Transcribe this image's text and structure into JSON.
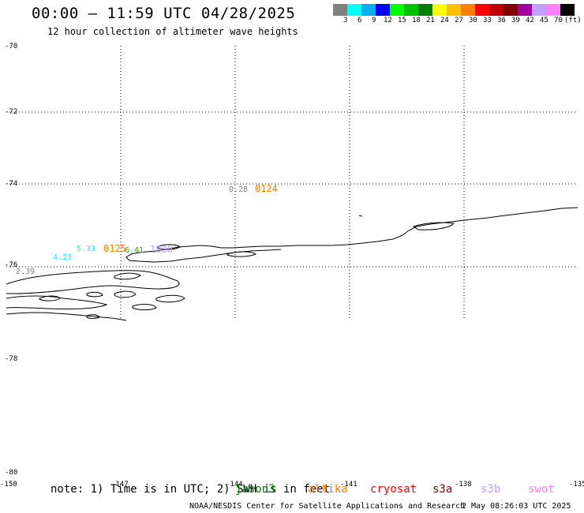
{
  "header": {
    "title": "00:00 – 11:59 UTC 04/28/2025",
    "subtitle": "12 hour collection of altimeter wave heights"
  },
  "colorbar": {
    "colors": [
      "#808080",
      "#00ffff",
      "#00b0f0",
      "#0000ff",
      "#00ff00",
      "#00c000",
      "#008000",
      "#ffff00",
      "#ffc000",
      "#ff8000",
      "#ff0000",
      "#c00000",
      "#800000",
      "#a000a0",
      "#c0a0ff",
      "#ff80ff",
      "#000000"
    ],
    "labels": [
      "3",
      "6",
      "9",
      "12",
      "15",
      "18",
      "21",
      "24",
      "27",
      "30",
      "33",
      "36",
      "39",
      "42",
      "45",
      "70"
    ],
    "unit": "(ft)"
  },
  "map": {
    "lat_ticks": [
      "-70",
      "-72",
      "-74",
      "-76",
      "-78",
      "-78",
      "-80"
    ],
    "lon_ticks": [
      "-150",
      "-147",
      "-144",
      "-141",
      "-138",
      "-135"
    ],
    "observations": [
      {
        "text": "0.28",
        "color": "#808080"
      },
      {
        "text": "0124",
        "color": "#ff8000"
      },
      {
        "text": "5.31",
        "color": "#00ffff"
      },
      {
        "text": "0125",
        "color": "#ff8000"
      },
      {
        "text": "6.41",
        "color": "#00c000"
      },
      {
        "text": "1000",
        "color": "#c0a0ff"
      },
      {
        "text": "4.23",
        "color": "#00ffff"
      },
      {
        "text": "2.39",
        "color": "#808080"
      }
    ]
  },
  "legend": {
    "note": "note: 1) Time is in UTC; 2) SWH is in feet",
    "missions": [
      {
        "name": "jason3",
        "color": "#008000"
      },
      {
        "name": "altika",
        "color": "#ff8000"
      },
      {
        "name": "cryosat",
        "color": "#ff0000"
      },
      {
        "name": "s3a",
        "color": "#800000"
      },
      {
        "name": "s3b",
        "color": "#c0a0ff"
      },
      {
        "name": "swot",
        "color": "#ff80ff"
      }
    ]
  },
  "footer": {
    "agency": "NOAA/NESDIS Center for Satellite Applications and Research",
    "timestamp": "2 May 08:26:03 UTC 2025"
  }
}
